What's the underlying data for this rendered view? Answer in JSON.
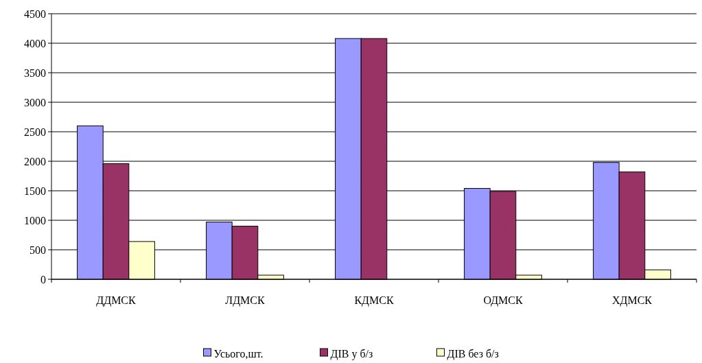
{
  "chart_data": {
    "type": "bar",
    "categories": [
      "ДДМСК",
      "ЛДМСК",
      "КДМСК",
      "ОДМСК",
      "ХДМСК"
    ],
    "series": [
      {
        "name": "Усього,шт.",
        "color": "#9999ff",
        "values": [
          2600,
          970,
          4080,
          1540,
          1980
        ]
      },
      {
        "name": "ДІВ у б/з",
        "color": "#993366",
        "values": [
          1960,
          900,
          4080,
          1490,
          1820
        ]
      },
      {
        "name": "ДІВ без б/з",
        "color": "#ffffcc",
        "values": [
          640,
          70,
          0,
          70,
          160
        ]
      }
    ],
    "ylim": [
      0,
      4500
    ],
    "yticks": [
      0,
      500,
      1000,
      1500,
      2000,
      2500,
      3000,
      3500,
      4000,
      4500
    ],
    "grid": "y",
    "legend": "bottom"
  }
}
